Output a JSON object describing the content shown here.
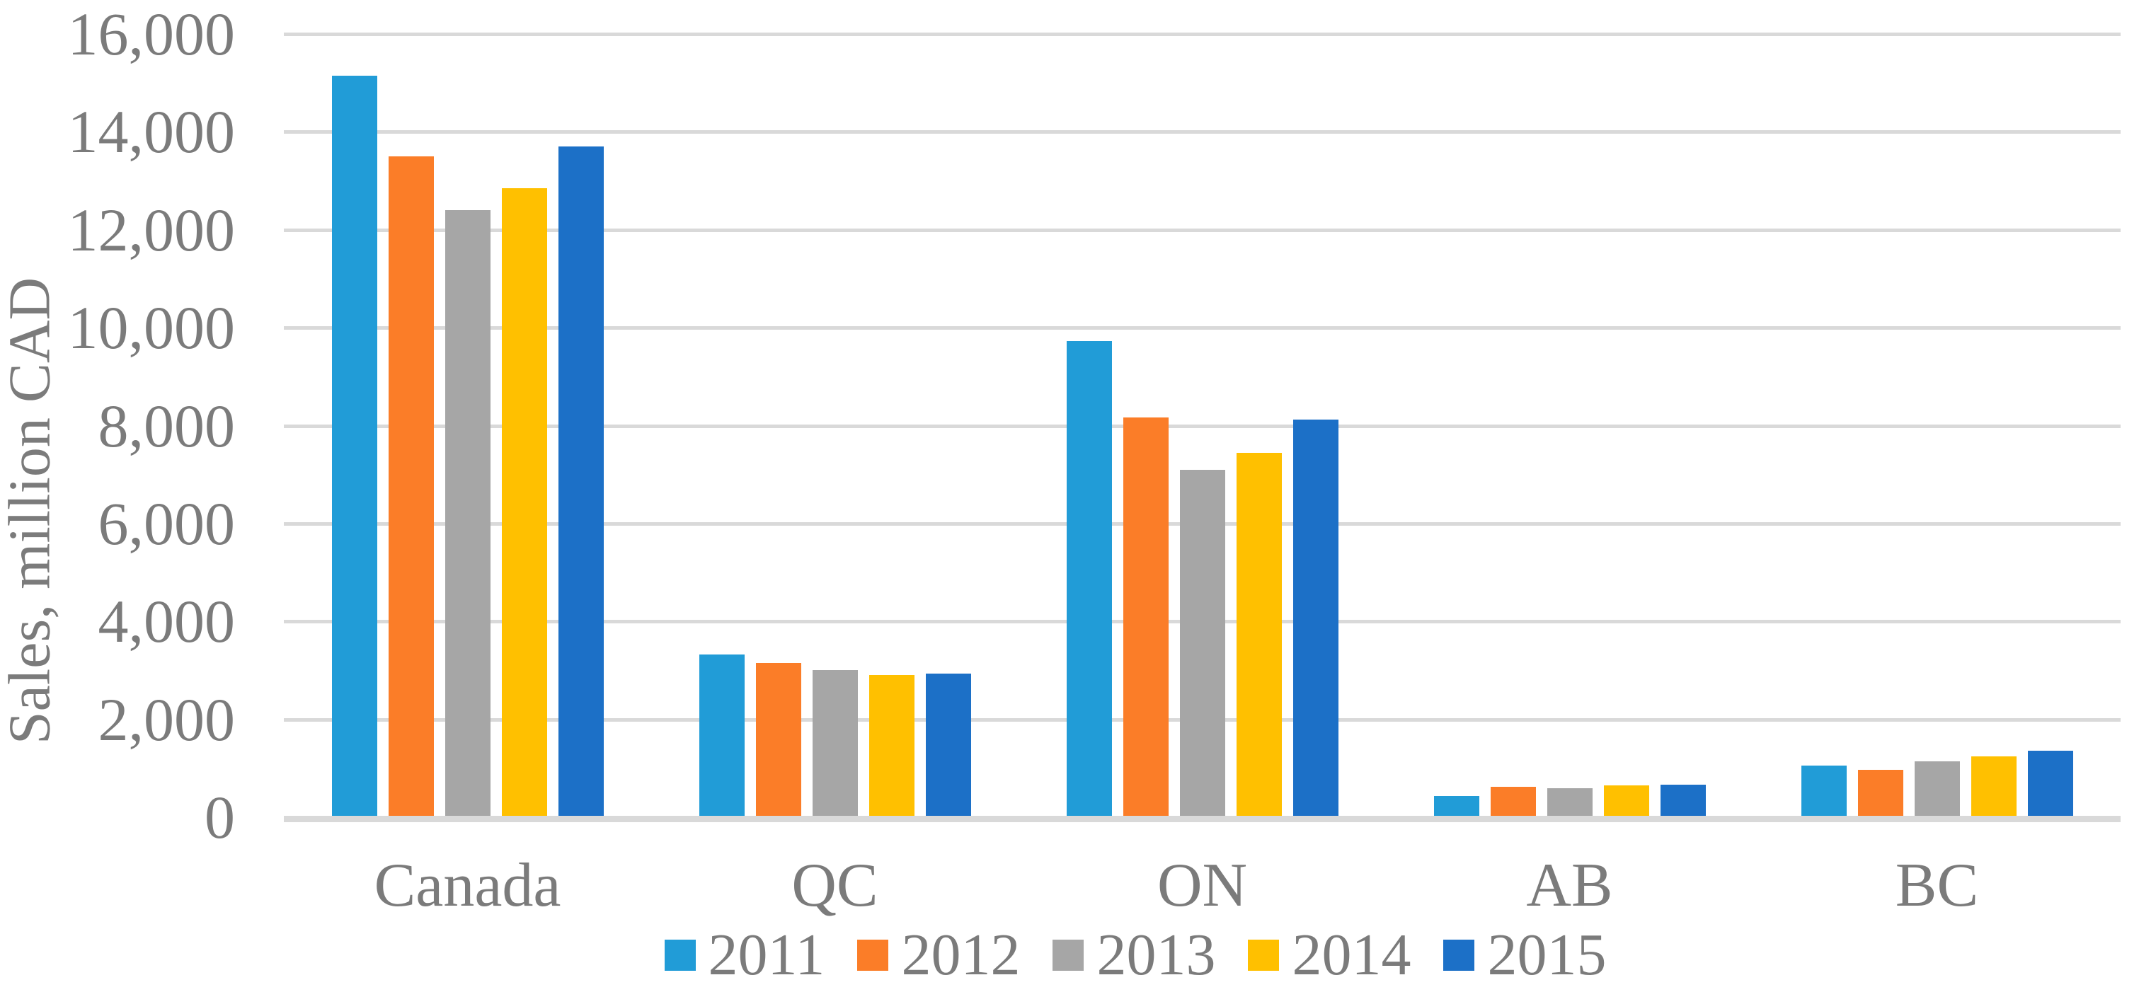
{
  "chart_data": {
    "type": "bar",
    "title": "",
    "ylabel": "Sales, million CAD",
    "xlabel": "",
    "ylim": [
      0,
      16000
    ],
    "ytick_step": 2000,
    "ytick_labels": [
      "0",
      "2,000",
      "4,000",
      "6,000",
      "8,000",
      "10,000",
      "12,000",
      "14,000",
      "16,000"
    ],
    "categories": [
      "Canada",
      "QC",
      "ON",
      "AB",
      "BC"
    ],
    "series": [
      {
        "name": "2011",
        "color": "#219CD7",
        "values": [
          15150,
          3330,
          9730,
          440,
          1050
        ]
      },
      {
        "name": "2012",
        "color": "#FB7D28",
        "values": [
          13500,
          3150,
          8160,
          620,
          970
        ]
      },
      {
        "name": "2013",
        "color": "#A6A6A6",
        "values": [
          12400,
          3010,
          7100,
          590,
          1140
        ]
      },
      {
        "name": "2014",
        "color": "#FFC000",
        "values": [
          12850,
          2900,
          7450,
          650,
          1250
        ]
      },
      {
        "name": "2015",
        "color": "#1C70C7",
        "values": [
          13700,
          2930,
          8130,
          670,
          1360
        ]
      }
    ],
    "grid": true,
    "gridline_color": "#D9D9D9",
    "axis_line_color": "#D9D9D9",
    "text_color": "#7B7B7B",
    "background_color": "#FFFFFF",
    "legend_position": "bottom"
  }
}
